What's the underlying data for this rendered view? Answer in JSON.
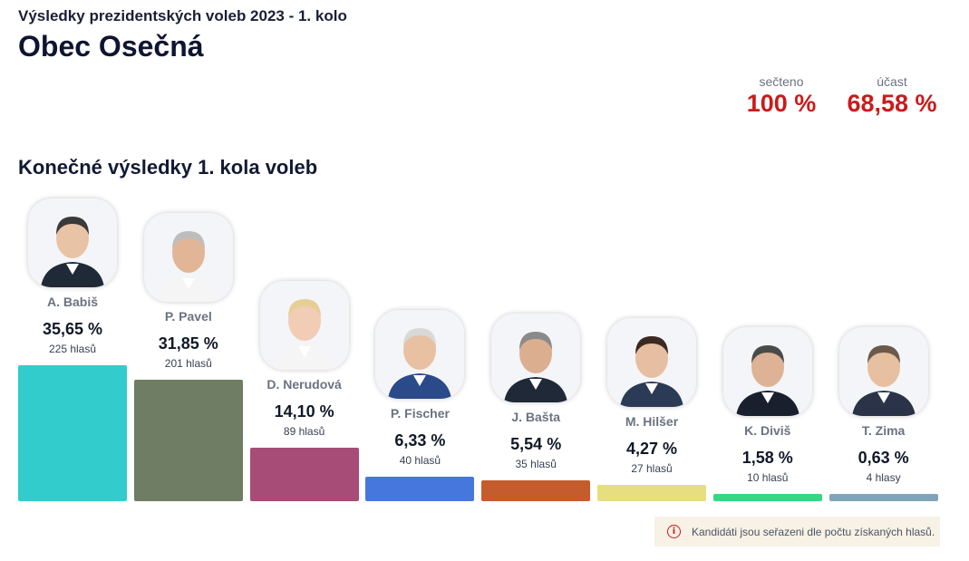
{
  "header": {
    "subtitle": "Výsledky prezidentských voleb 2023 - 1. kolo",
    "title": "Obec Osečná"
  },
  "stats": {
    "counted_label": "sečteno",
    "counted_value": "100 %",
    "turnout_label": "účast",
    "turnout_value": "68,58 %",
    "accent_color": "#cc1a1a"
  },
  "section_title": "Konečné výsledky 1. kola voleb",
  "chart_data": {
    "type": "bar",
    "title": "Konečné výsledky 1. kola voleb",
    "categories": [
      "A. Babiš",
      "P. Pavel",
      "D. Nerudová",
      "P. Fischer",
      "J. Bašta",
      "M. Hilšer",
      "K. Diviš",
      "T. Zima"
    ],
    "values": [
      35.65,
      31.85,
      14.1,
      6.33,
      5.54,
      4.27,
      1.58,
      0.63
    ],
    "value_labels": [
      "35,65 %",
      "31,85 %",
      "14,10 %",
      "6,33 %",
      "5,54 %",
      "4,27 %",
      "1,58 %",
      "0,63 %"
    ],
    "votes": [
      225,
      201,
      89,
      40,
      35,
      27,
      10,
      4
    ],
    "vote_labels": [
      "225 hlasů",
      "201 hlasů",
      "89 hlasů",
      "40 hlasů",
      "35 hlasů",
      "27 hlasů",
      "10 hlasů",
      "4 hlasy"
    ],
    "colors": [
      "#33cccc",
      "#6e7d63",
      "#a64c77",
      "#4677dd",
      "#c45c2c",
      "#e6de7f",
      "#35d882",
      "#7fa4b9"
    ],
    "xlabel": "",
    "ylabel": "",
    "grid": false,
    "legend": "none"
  },
  "candidates_icons": [
    "candidate-photo-icon"
  ],
  "note": {
    "text": "Kandidáti jsou seřazeni dle počtu získaných hlasů.",
    "icon": "info-icon"
  }
}
